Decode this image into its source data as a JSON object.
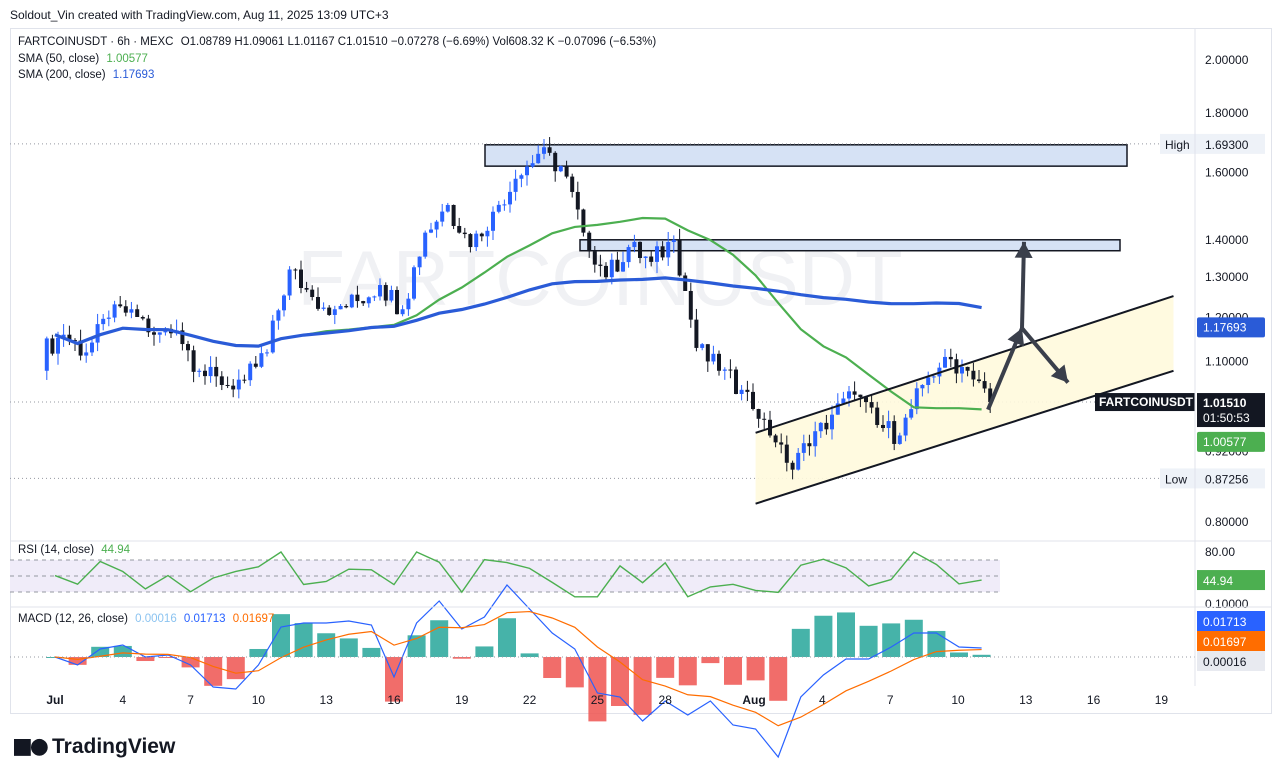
{
  "attribution": "Soldout_Vin created with TradingView.com, Aug 11, 2025 13:09 UTC+3",
  "brand": "TradingView",
  "watermark": "FARTCOINUSDT",
  "legend": {
    "symbol": "FARTCOINUSDT · 6h · MEXC",
    "ohlc": "O1.08789 H1.09061 L1.01167 C1.01510 −0.07278 (−6.69%) Vol608.32 K −0.07096 (−6.53%)",
    "sma50_label": "SMA (50, close)",
    "sma50_value": "1.00577",
    "sma200_label": "SMA (200, close)",
    "sma200_value": "1.17693",
    "rsi_label": "RSI (14, close)",
    "rsi_value": "44.94",
    "macd_label": "MACD (12, 26, close)",
    "macd_hist": "0.00016",
    "macd_line": "0.01713",
    "macd_signal": "0.01697"
  },
  "price_axis": {
    "ticks": [
      "2.00000",
      "1.80000",
      "1.60000",
      "1.40000",
      "1.30000",
      "1.20000",
      "1.10000",
      "0.92000",
      "0.80000"
    ],
    "high_label": "High",
    "high_value": "1.69300",
    "low_label": "Low",
    "low_value": "0.87256",
    "tag_symbol": "FARTCOINUSDT",
    "tag_price": "1.01510",
    "tag_countdown": "01:50:53",
    "tag_sma200": "1.17693",
    "tag_sma50": "1.00577"
  },
  "rsi_axis": {
    "ticks": [
      "80.00",
      "0.10000"
    ],
    "tag_value": "44.94"
  },
  "macd_axis": {
    "tag_line": "0.01713",
    "tag_signal": "0.01697",
    "tag_hist": "0.00016"
  },
  "time_axis": [
    "Jul",
    "4",
    "7",
    "10",
    "13",
    "16",
    "19",
    "22",
    "25",
    "28",
    "Aug",
    "4",
    "7",
    "10",
    "13",
    "16",
    "19"
  ],
  "colors": {
    "up": "#2962ff",
    "down": "#131722",
    "sma50": "#4caf50",
    "sma200": "#2a5bd7",
    "zone": "#d6e2f5",
    "channel": "#fff9dd",
    "rsi": "#4caf50",
    "macd": "#2962ff",
    "signal": "#ff6d00"
  },
  "chart_data": [
    {
      "type": "candlestick",
      "title": "FARTCOINUSDT · 6h · MEXC",
      "x_range": [
        "Jul 1",
        "Aug 19"
      ],
      "ylim": [
        0.78,
        2.08
      ],
      "y_scale": "log",
      "series": [
        {
          "name": "FARTCOINUSDT",
          "x": [
            "Jul 1",
            "Jul 2",
            "Jul 3",
            "Jul 4",
            "Jul 5",
            "Jul 6",
            "Jul 7",
            "Jul 8",
            "Jul 9",
            "Jul 10",
            "Jul 11",
            "Jul 12",
            "Jul 13",
            "Jul 14",
            "Jul 15",
            "Jul 16",
            "Jul 17",
            "Jul 18",
            "Jul 19",
            "Jul 20",
            "Jul 21",
            "Jul 22",
            "Jul 23",
            "Jul 24",
            "Jul 25",
            "Jul 26",
            "Jul 27",
            "Jul 28",
            "Jul 29",
            "Jul 30",
            "Jul 31",
            "Aug 1",
            "Aug 2",
            "Aug 3",
            "Aug 4",
            "Aug 5",
            "Aug 6",
            "Aug 7",
            "Aug 8",
            "Aug 9",
            "Aug 10",
            "Aug 11"
          ],
          "close": [
            1.16,
            1.12,
            1.2,
            1.22,
            1.16,
            1.17,
            1.08,
            1.05,
            1.06,
            1.12,
            1.32,
            1.25,
            1.22,
            1.24,
            1.28,
            1.22,
            1.42,
            1.5,
            1.38,
            1.48,
            1.58,
            1.66,
            1.62,
            1.42,
            1.3,
            1.38,
            1.34,
            1.4,
            1.13,
            1.08,
            1.04,
            0.98,
            0.9,
            0.93,
            0.99,
            1.03,
            0.97,
            0.95,
            1.05,
            1.11,
            1.08,
            1.0151
          ]
        },
        {
          "name": "SMA (50, close)",
          "current": 1.00577
        },
        {
          "name": "SMA (200, close)",
          "current": 1.17693
        }
      ],
      "high": 1.693,
      "low": 0.87256,
      "annotations": [
        "resistance zone 1.62–1.69",
        "resistance zone 1.37–1.40",
        "ascending channel from Aug 1 to Aug 17",
        "arrow up to 1.40",
        "arrow down to lower channel"
      ],
      "grid": false
    },
    {
      "type": "line",
      "title": "RSI (14, close)",
      "series": [
        {
          "name": "RSI",
          "current": 44.94
        }
      ],
      "ylim": [
        20,
        85
      ]
    },
    {
      "type": "bar",
      "title": "MACD (12, 26, close)",
      "series": [
        {
          "name": "Histogram",
          "current": 0.00016
        },
        {
          "name": "MACD",
          "current": 0.01713
        },
        {
          "name": "Signal",
          "current": 0.01697
        }
      ]
    }
  ]
}
